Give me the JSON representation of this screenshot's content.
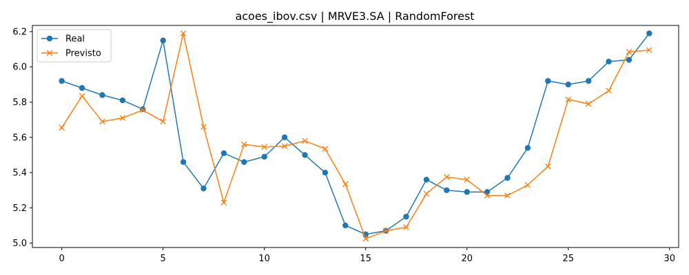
{
  "chart_data": {
    "type": "line",
    "title": "acoes_ibov.csv | MRVE3.SA | RandomForest",
    "xlabel": "",
    "ylabel": "",
    "xlim": [
      -1.45,
      30.45
    ],
    "ylim": [
      4.975,
      6.235
    ],
    "xticks": [
      0,
      5,
      10,
      15,
      20,
      25,
      30
    ],
    "yticks": [
      5.0,
      5.2,
      5.4,
      5.6,
      5.8,
      6.0,
      6.2
    ],
    "grid": false,
    "legend_position": "top-left",
    "x": [
      0,
      1,
      2,
      3,
      4,
      5,
      6,
      7,
      8,
      9,
      10,
      11,
      12,
      13,
      14,
      15,
      16,
      17,
      18,
      19,
      20,
      21,
      22,
      23,
      24,
      25,
      26,
      27,
      28,
      29
    ],
    "series": [
      {
        "name": "Real",
        "color": "#1f77b4",
        "marker": "circle",
        "values": [
          5.92,
          5.88,
          5.84,
          5.81,
          5.76,
          6.15,
          5.46,
          5.31,
          5.51,
          5.46,
          5.49,
          5.6,
          5.5,
          5.4,
          5.1,
          5.05,
          5.07,
          5.15,
          5.36,
          5.3,
          5.29,
          5.29,
          5.37,
          5.54,
          5.92,
          5.9,
          5.92,
          6.03,
          6.04,
          6.19
        ]
      },
      {
        "name": "Previsto",
        "color": "#ff7f0e",
        "marker": "x",
        "values": [
          5.655,
          5.835,
          5.69,
          5.71,
          5.755,
          5.69,
          6.19,
          5.66,
          5.23,
          5.56,
          5.545,
          5.55,
          5.58,
          5.535,
          5.335,
          5.025,
          5.07,
          5.09,
          5.28,
          5.375,
          5.36,
          5.27,
          5.27,
          5.33,
          5.435,
          5.815,
          5.79,
          5.865,
          6.085,
          6.095
        ]
      }
    ]
  }
}
